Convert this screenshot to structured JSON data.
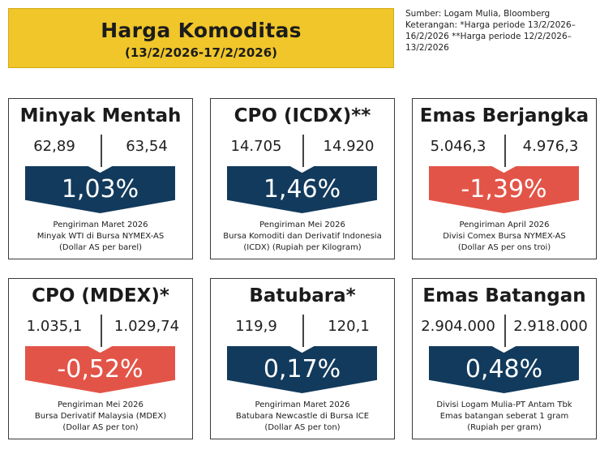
{
  "header": {
    "title": "Harga Komoditas",
    "period": "(13/2/2026-17/2/2026)"
  },
  "source": {
    "line1": "Sumber: Logam Mulia, Bloomberg",
    "line2": "Keterangan: *Harga periode 13/2/2026–",
    "line3": "16/2/2026 **Harga periode 12/2/2026–",
    "line4": "13/2/2026"
  },
  "colors": {
    "up": "#123a5c",
    "down": "#e35448",
    "title_bg": "#f0c62a"
  },
  "chart_data": {
    "type": "table",
    "columns": [
      "name",
      "price_start",
      "price_end",
      "change_pct"
    ],
    "cards": [
      {
        "name": "Minyak Mentah",
        "price_start": "62,89",
        "price_end": "63,54",
        "change": "1,03%",
        "direction": "up",
        "desc1": "Pengiriman Maret 2026",
        "desc2": "Minyak WTI di Bursa NYMEX-AS",
        "desc3": "(Dollar AS per barel)"
      },
      {
        "name": "CPO (ICDX)**",
        "price_start": "14.705",
        "price_end": "14.920",
        "change": "1,46%",
        "direction": "up",
        "desc1": "Pengiriman Mei 2026",
        "desc2": "Bursa Komoditi dan Derivatif Indonesia",
        "desc3": "(ICDX) (Rupiah per Kilogram)"
      },
      {
        "name": "Emas Berjangka",
        "price_start": "5.046,3",
        "price_end": "4.976,3",
        "change": "-1,39%",
        "direction": "down",
        "desc1": "Pengiriman April 2026",
        "desc2": "Divisi Comex Bursa NYMEX-AS",
        "desc3": "(Dollar AS per ons troi)"
      },
      {
        "name": "CPO (MDEX)*",
        "price_start": "1.035,1",
        "price_end": "1.029,74",
        "change": "-0,52%",
        "direction": "down",
        "desc1": "Pengiriman Mei 2026",
        "desc2": "Bursa Derivatif Malaysia (MDEX)",
        "desc3": "(Dollar AS per ton)"
      },
      {
        "name": "Batubara*",
        "price_start": "119,9",
        "price_end": "120,1",
        "change": "0,17%",
        "direction": "up",
        "desc1": "Pengiriman Maret 2026",
        "desc2": "Batubara Newcastle di Bursa ICE",
        "desc3": "(Dollar AS per ton)"
      },
      {
        "name": "Emas Batangan",
        "price_start": "2.904.000",
        "price_end": "2.918.000",
        "change": "0,48%",
        "direction": "up",
        "desc1": "Divisi Logam Mulia-PT Antam Tbk",
        "desc2": "Emas batangan seberat 1 gram",
        "desc3": "(Rupiah per gram)"
      }
    ]
  }
}
